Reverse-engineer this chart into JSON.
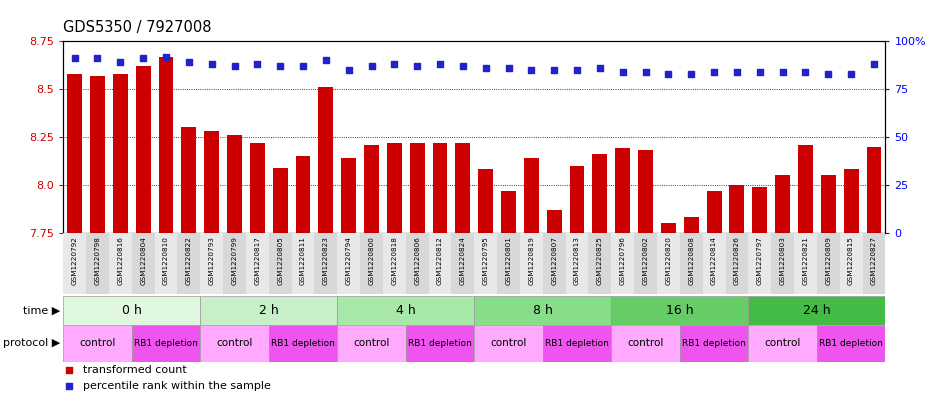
{
  "title": "GDS5350 / 7927008",
  "samples": [
    "GSM1220792",
    "GSM1220798",
    "GSM1220816",
    "GSM1220804",
    "GSM1220810",
    "GSM1220822",
    "GSM1220793",
    "GSM1220799",
    "GSM1220817",
    "GSM1220805",
    "GSM1220811",
    "GSM1220823",
    "GSM1220794",
    "GSM1220800",
    "GSM1220818",
    "GSM1220806",
    "GSM1220812",
    "GSM1220824",
    "GSM1220795",
    "GSM1220801",
    "GSM1220819",
    "GSM1220807",
    "GSM1220813",
    "GSM1220825",
    "GSM1220796",
    "GSM1220802",
    "GSM1220820",
    "GSM1220808",
    "GSM1220814",
    "GSM1220826",
    "GSM1220797",
    "GSM1220803",
    "GSM1220821",
    "GSM1220809",
    "GSM1220815",
    "GSM1220827"
  ],
  "bar_values": [
    8.58,
    8.57,
    8.58,
    8.62,
    8.67,
    8.3,
    8.28,
    8.26,
    8.22,
    8.09,
    8.15,
    8.51,
    8.14,
    8.21,
    8.22,
    8.22,
    8.22,
    8.22,
    8.08,
    7.97,
    8.14,
    7.87,
    8.1,
    8.16,
    8.19,
    8.18,
    7.8,
    7.83,
    7.97,
    8.0,
    7.99,
    8.05,
    8.21,
    8.05,
    8.08,
    8.2
  ],
  "percentile_values": [
    91,
    91,
    89,
    91,
    92,
    89,
    88,
    87,
    88,
    87,
    87,
    90,
    85,
    87,
    88,
    87,
    88,
    87,
    86,
    86,
    85,
    85,
    85,
    86,
    84,
    84,
    83,
    83,
    84,
    84,
    84,
    84,
    84,
    83,
    83,
    88
  ],
  "time_groups": [
    {
      "label": "0 h",
      "start": 0,
      "end": 6,
      "color": "#e0f8e0"
    },
    {
      "label": "2 h",
      "start": 6,
      "end": 12,
      "color": "#c8f0c8"
    },
    {
      "label": "4 h",
      "start": 12,
      "end": 18,
      "color": "#a8e8a8"
    },
    {
      "label": "8 h",
      "start": 18,
      "end": 24,
      "color": "#88dd88"
    },
    {
      "label": "16 h",
      "start": 24,
      "end": 30,
      "color": "#66cc66"
    },
    {
      "label": "24 h",
      "start": 30,
      "end": 36,
      "color": "#44bb44"
    }
  ],
  "protocol_groups": [
    {
      "label": "control",
      "start": 0,
      "end": 3,
      "color": "#ffaaff"
    },
    {
      "label": "RB1 depletion",
      "start": 3,
      "end": 6,
      "color": "#ee55ee"
    },
    {
      "label": "control",
      "start": 6,
      "end": 9,
      "color": "#ffaaff"
    },
    {
      "label": "RB1 depletion",
      "start": 9,
      "end": 12,
      "color": "#ee55ee"
    },
    {
      "label": "control",
      "start": 12,
      "end": 15,
      "color": "#ffaaff"
    },
    {
      "label": "RB1 depletion",
      "start": 15,
      "end": 18,
      "color": "#ee55ee"
    },
    {
      "label": "control",
      "start": 18,
      "end": 21,
      "color": "#ffaaff"
    },
    {
      "label": "RB1 depletion",
      "start": 21,
      "end": 24,
      "color": "#ee55ee"
    },
    {
      "label": "control",
      "start": 24,
      "end": 27,
      "color": "#ffaaff"
    },
    {
      "label": "RB1 depletion",
      "start": 27,
      "end": 30,
      "color": "#ee55ee"
    },
    {
      "label": "control",
      "start": 30,
      "end": 33,
      "color": "#ffaaff"
    },
    {
      "label": "RB1 depletion",
      "start": 33,
      "end": 36,
      "color": "#ee55ee"
    }
  ],
  "ymin": 7.75,
  "ymax": 8.75,
  "yticks_left": [
    7.75,
    8.0,
    8.25,
    8.5,
    8.75
  ],
  "yticks_right": [
    0,
    25,
    50,
    75,
    100
  ],
  "bar_color": "#cc0000",
  "dot_color": "#2222cc",
  "bar_width": 0.65,
  "xtick_bg_even": "#e8e8e8",
  "xtick_bg_odd": "#d8d8d8"
}
